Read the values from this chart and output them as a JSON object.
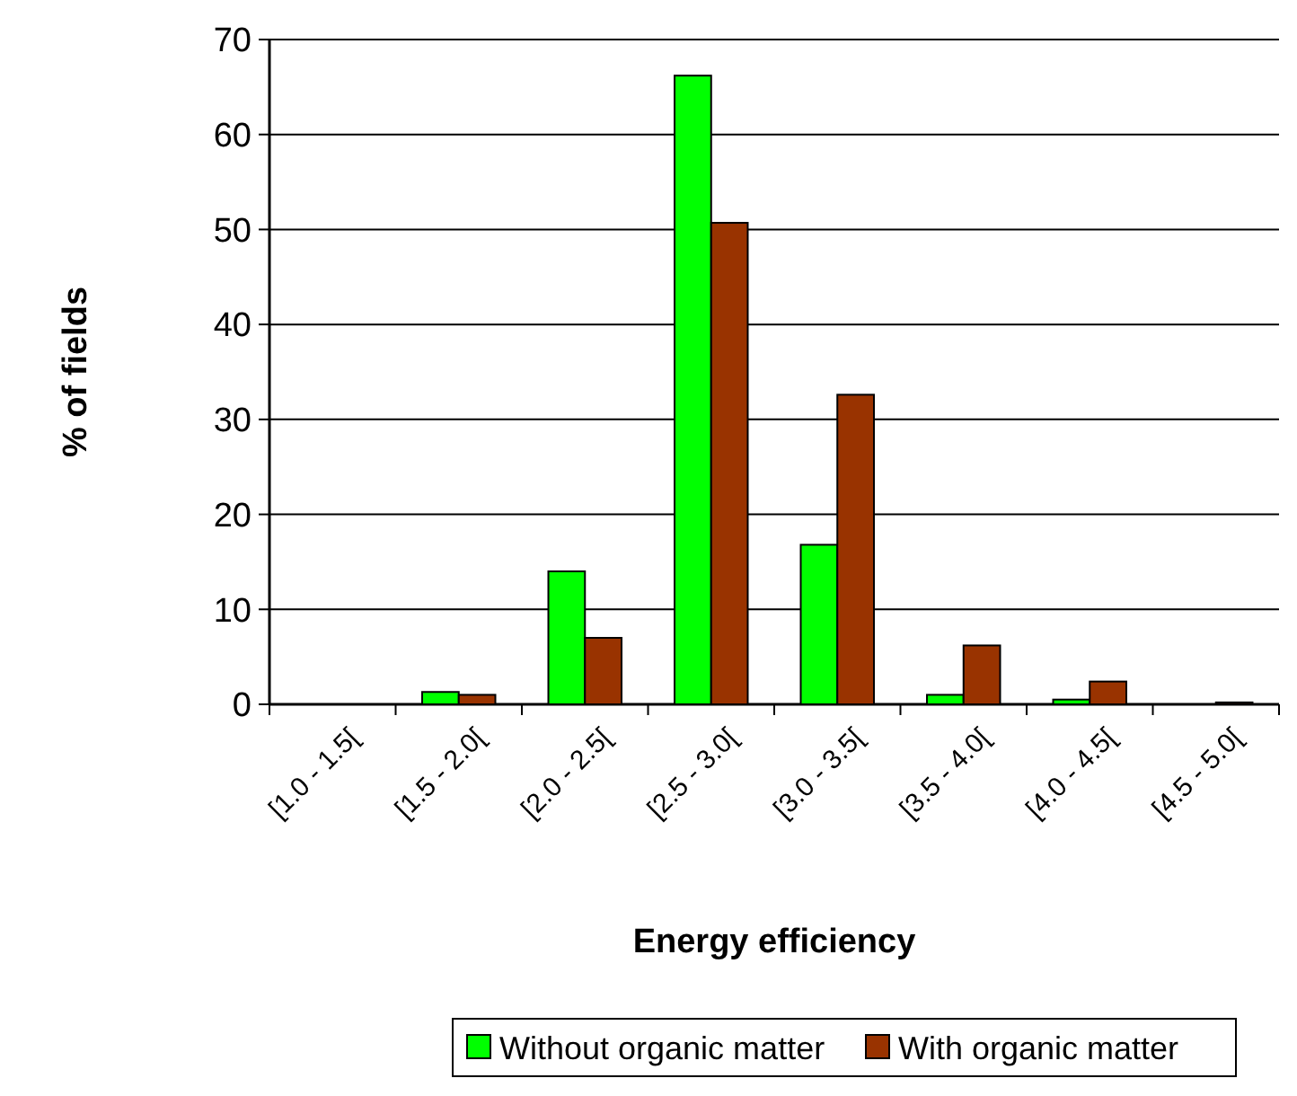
{
  "chart_data": {
    "type": "bar",
    "xlabel": "Energy efficiency",
    "ylabel": "% of fields",
    "categories": [
      "[1.0 - 1.5[",
      "[1.5 - 2.0[",
      "[2.0 - 2.5[",
      "[2.5 - 3.0[",
      "[3.0 - 3.5[",
      "[3.5 - 4.0[",
      "[4.0 - 4.5[",
      "[4.5 - 5.0["
    ],
    "series": [
      {
        "name": "Without organic matter",
        "color": "#00ff00",
        "values": [
          0,
          1.3,
          14,
          66.2,
          16.8,
          1.0,
          0.5,
          0
        ]
      },
      {
        "name": "With organic matter",
        "color": "#993300",
        "values": [
          0,
          1.0,
          7,
          50.7,
          32.6,
          6.2,
          2.4,
          0.2
        ]
      }
    ],
    "ylim": [
      0,
      70
    ],
    "yticks": [
      0,
      10,
      20,
      30,
      40,
      50,
      60,
      70
    ],
    "grid": "y",
    "legend": "bottom"
  }
}
